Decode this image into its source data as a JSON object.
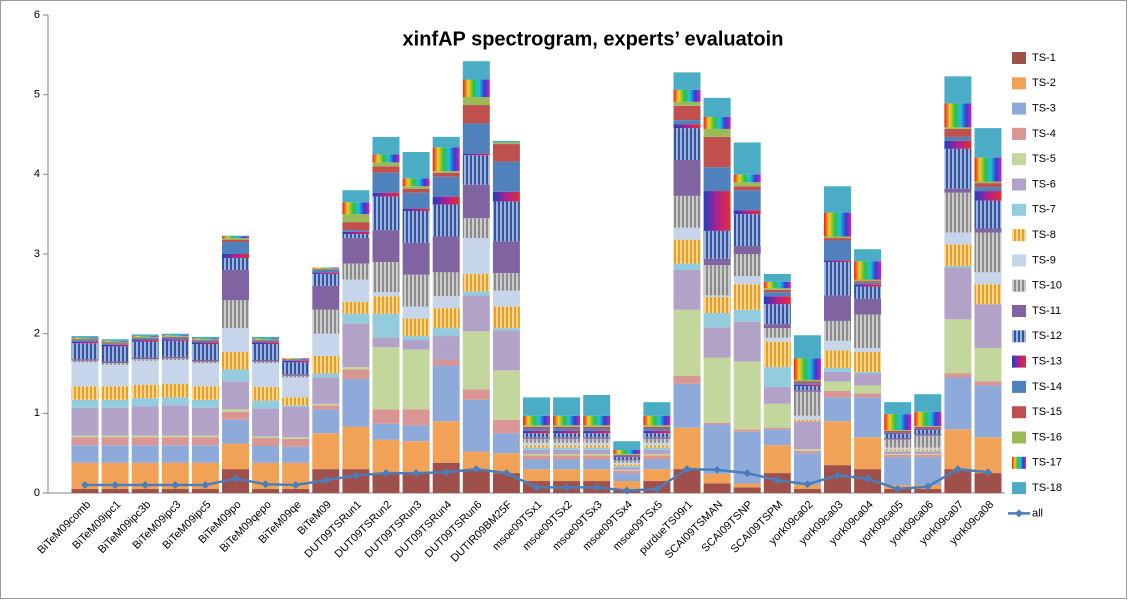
{
  "chart_data": {
    "type": "stacked-bar",
    "title": "xinfAP  spectrogram, experts’ evaluatoin",
    "categories": [
      "BiTeM09comb",
      "BiTeM09ipc1",
      "BiTeM09ipc3b",
      "BiTeM09ipc3",
      "BiTeM09ipc5",
      "BiTeM09po",
      "BiTeM09qepo",
      "BiTeM09qe",
      "BiTeM09",
      "DUT09TSRun1",
      "DUT09TSRun2",
      "DUT09TSRun3",
      "DUT09TSRun4",
      "DUT09TSRun6",
      "DUTIR09BM25F",
      "msoe09TSx1",
      "msoe09TSx2",
      "msoe09TSx3",
      "msoe09TSx4",
      "msoe09TSx5",
      "purdueTS09r1",
      "SCAI09TSMAN",
      "SCAI09TSNP",
      "SCAI09TSPM",
      "york09ca02",
      "york09ca03",
      "york09ca04",
      "york09ca05",
      "york09ca06",
      "york09ca07",
      "york09ca08"
    ],
    "ylim": [
      0,
      6
    ],
    "yticks": [
      0,
      1,
      2,
      3,
      4,
      5,
      6
    ],
    "grid": false,
    "legend": "right",
    "series": [
      {
        "name": "TS-1",
        "color": "#a0504a",
        "values": [
          0.05,
          0.05,
          0.05,
          0.05,
          0.05,
          0.3,
          0.05,
          0.05,
          0.3,
          0.3,
          0.25,
          0.25,
          0.38,
          0.3,
          0.25,
          0.15,
          0.15,
          0.15,
          0.05,
          0.15,
          0.3,
          0.12,
          0.07,
          0.25,
          0.05,
          0.35,
          0.3,
          0.05,
          0.05,
          0.3,
          0.25
        ]
      },
      {
        "name": "TS-2",
        "color": "#f2a256",
        "values": [
          0.33,
          0.33,
          0.33,
          0.33,
          0.33,
          0.32,
          0.33,
          0.33,
          0.45,
          0.53,
          0.42,
          0.4,
          0.52,
          0.22,
          0.25,
          0.15,
          0.15,
          0.15,
          0.1,
          0.15,
          0.52,
          0.12,
          0.05,
          0.35,
          0.05,
          0.55,
          0.4,
          0.05,
          0.05,
          0.5,
          0.45
        ]
      },
      {
        "name": "TS-3",
        "color": "#8eaadb",
        "values": [
          0.22,
          0.22,
          0.22,
          0.22,
          0.22,
          0.3,
          0.21,
          0.2,
          0.3,
          0.6,
          0.2,
          0.2,
          0.7,
          0.65,
          0.25,
          0.12,
          0.12,
          0.12,
          0.1,
          0.12,
          0.55,
          0.62,
          0.65,
          0.2,
          0.4,
          0.3,
          0.5,
          0.35,
          0.35,
          0.65,
          0.65
        ]
      },
      {
        "name": "TS-4",
        "color": "#d99694",
        "values": [
          0.1,
          0.1,
          0.1,
          0.1,
          0.1,
          0.1,
          0.1,
          0.1,
          0.05,
          0.12,
          0.18,
          0.2,
          0.07,
          0.13,
          0.17,
          0.05,
          0.05,
          0.05,
          0.03,
          0.05,
          0.1,
          0.02,
          0.03,
          0.02,
          0.03,
          0.08,
          0.05,
          0.03,
          0.03,
          0.05,
          0.05
        ]
      },
      {
        "name": "TS-5",
        "color": "#c3d69b",
        "values": [
          0.02,
          0.02,
          0.02,
          0.02,
          0.02,
          0.03,
          0.02,
          0.02,
          0.02,
          0.03,
          0.78,
          0.75,
          0,
          0.73,
          0.62,
          0.02,
          0.02,
          0.02,
          0.01,
          0.02,
          0.83,
          0.82,
          0.85,
          0.3,
          0.02,
          0.12,
          0.1,
          0.01,
          0.01,
          0.68,
          0.42
        ]
      },
      {
        "name": "TS-6",
        "color": "#b3a2c7",
        "values": [
          0.35,
          0.35,
          0.37,
          0.38,
          0.35,
          0.35,
          0.35,
          0.38,
          0.33,
          0.55,
          0.12,
          0.12,
          0.3,
          0.45,
          0.5,
          0.05,
          0.05,
          0.05,
          0.03,
          0.05,
          0.5,
          0.38,
          0.5,
          0.21,
          0.35,
          0.12,
          0.15,
          0.03,
          0.03,
          0.65,
          0.55
        ]
      },
      {
        "name": "TS-7",
        "color": "#93cddd",
        "values": [
          0.1,
          0.1,
          0.1,
          0.1,
          0.1,
          0.15,
          0.1,
          0.02,
          0.05,
          0.12,
          0.3,
          0.05,
          0.1,
          0.05,
          0.03,
          0.03,
          0.03,
          0.03,
          0.02,
          0.03,
          0.08,
          0.18,
          0.15,
          0.25,
          0,
          0.05,
          0.02,
          0.01,
          0.01,
          0.02,
          0
        ]
      },
      {
        "name": "TS-8",
        "color": "#e8a020",
        "pattern": "stripes",
        "values": [
          0.17,
          0.17,
          0.17,
          0.17,
          0.17,
          0.22,
          0.17,
          0.1,
          0.22,
          0.15,
          0.22,
          0.22,
          0.25,
          0.22,
          0.27,
          0.03,
          0.03,
          0.03,
          0.02,
          0.03,
          0.3,
          0.2,
          0.32,
          0.32,
          0.02,
          0.22,
          0.25,
          0.02,
          0.02,
          0.27,
          0.25
        ]
      },
      {
        "name": "TS-9",
        "color": "#c6d5ea",
        "values": [
          0.3,
          0.27,
          0.3,
          0.3,
          0.29,
          0.3,
          0.3,
          0.25,
          0.28,
          0.28,
          0.05,
          0.15,
          0.15,
          0.45,
          0.2,
          0.03,
          0.03,
          0.03,
          0.02,
          0.03,
          0.15,
          0.02,
          0.1,
          0.05,
          0.05,
          0.12,
          0.05,
          0.02,
          0.02,
          0.15,
          0.15
        ]
      },
      {
        "name": "TS-10",
        "color": "#8c8c8c",
        "pattern": "stripes",
        "values": [
          0.02,
          0.02,
          0.02,
          0.02,
          0.02,
          0.35,
          0.02,
          0.02,
          0.3,
          0.2,
          0.38,
          0.4,
          0.3,
          0.25,
          0.22,
          0.05,
          0.05,
          0.05,
          0.03,
          0.05,
          0.4,
          0.38,
          0.28,
          0.12,
          0.3,
          0.25,
          0.42,
          0.1,
          0.15,
          0.5,
          0.5
        ]
      },
      {
        "name": "TS-11",
        "color": "#8064a2",
        "values": [
          0.02,
          0.02,
          0.02,
          0.02,
          0.02,
          0.38,
          0.02,
          0.02,
          0.3,
          0.32,
          0.4,
          0.4,
          0.45,
          0.42,
          0.4,
          0.02,
          0.02,
          0.02,
          0.01,
          0.02,
          0.45,
          0.08,
          0.1,
          0.05,
          0.02,
          0.32,
          0.2,
          0.02,
          0.02,
          0.05,
          0.05
        ]
      },
      {
        "name": "TS-12",
        "color": "#2f55a4",
        "pattern": "stripes",
        "values": [
          0.2,
          0.19,
          0.2,
          0.2,
          0.2,
          0.15,
          0.2,
          0.15,
          0.15,
          0.05,
          0.42,
          0.4,
          0.4,
          0.37,
          0.5,
          0.05,
          0.05,
          0.05,
          0.03,
          0.05,
          0.4,
          0.35,
          0.4,
          0.25,
          0.05,
          0.42,
          0.15,
          0.05,
          0.05,
          0.5,
          0.35
        ]
      },
      {
        "name": "TS-13",
        "color": "#a0208f",
        "pattern": "gradient",
        "values": [
          0.02,
          0.02,
          0.02,
          0.02,
          0.02,
          0.05,
          0.02,
          0.02,
          0.02,
          0.03,
          0.05,
          0.03,
          0.1,
          0.02,
          0.12,
          0.03,
          0.03,
          0.03,
          0.01,
          0.03,
          0.05,
          0.5,
          0.05,
          0.1,
          0.02,
          0.02,
          0.03,
          0.01,
          0.01,
          0.1,
          0.12
        ]
      },
      {
        "name": "TS-14",
        "color": "#4f81bd",
        "values": [
          0.02,
          0.02,
          0.02,
          0.02,
          0.02,
          0.15,
          0.02,
          0.01,
          0.03,
          0.02,
          0.25,
          0.2,
          0.25,
          0.38,
          0.38,
          0.03,
          0.03,
          0.03,
          0.01,
          0.03,
          0.05,
          0.3,
          0.25,
          0.05,
          0.02,
          0.25,
          0.02,
          0.01,
          0.01,
          0.05,
          0.05
        ]
      },
      {
        "name": "TS-15",
        "color": "#c0504d",
        "values": [
          0.01,
          0.01,
          0.01,
          0.01,
          0.01,
          0.03,
          0.01,
          0.01,
          0.01,
          0.1,
          0.08,
          0.05,
          0.05,
          0.23,
          0.22,
          0.02,
          0.02,
          0.02,
          0.01,
          0.02,
          0.18,
          0.38,
          0.05,
          0.03,
          0.02,
          0.03,
          0.02,
          0.02,
          0.02,
          0.1,
          0.05
        ]
      },
      {
        "name": "TS-16",
        "color": "#9bbb59",
        "values": [
          0.01,
          0.01,
          0.01,
          0.01,
          0.01,
          0.02,
          0.01,
          0,
          0.01,
          0.1,
          0.05,
          0.03,
          0.02,
          0.1,
          0.02,
          0.02,
          0.02,
          0.02,
          0.01,
          0.02,
          0.05,
          0.1,
          0.05,
          0.02,
          0.02,
          0.02,
          0.02,
          0.01,
          0.01,
          0.02,
          0.02
        ]
      },
      {
        "name": "TS-17",
        "color": "#f0c020",
        "pattern": "rainbow",
        "values": [
          0.01,
          0.01,
          0.01,
          0.01,
          0.01,
          0.02,
          0.01,
          0.01,
          0.01,
          0.15,
          0.1,
          0.1,
          0.3,
          0.22,
          0,
          0.12,
          0.12,
          0.12,
          0.05,
          0.12,
          0.15,
          0.15,
          0.1,
          0.08,
          0.27,
          0.3,
          0.23,
          0.2,
          0.18,
          0.3,
          0.3
        ]
      },
      {
        "name": "TS-18",
        "color": "#4bacc6",
        "values": [
          0.02,
          0.02,
          0.02,
          0.02,
          0.02,
          0.01,
          0.02,
          0,
          0,
          0.15,
          0.22,
          0.33,
          0.13,
          0.23,
          0.02,
          0.23,
          0.23,
          0.26,
          0.11,
          0.17,
          0.22,
          0.24,
          0.4,
          0.1,
          0.29,
          0.33,
          0.15,
          0.15,
          0.22,
          0.34,
          0.37
        ]
      },
      {
        "name": "all",
        "color": "#4a7ebb",
        "type": "line",
        "values": [
          0.1,
          0.1,
          0.1,
          0.1,
          0.1,
          0.18,
          0.11,
          0.1,
          0.16,
          0.22,
          0.25,
          0.25,
          0.26,
          0.3,
          0.25,
          0.07,
          0.07,
          0.07,
          0.03,
          0.05,
          0.3,
          0.29,
          0.25,
          0.16,
          0.11,
          0.22,
          0.18,
          0.05,
          0.08,
          0.3,
          0.26
        ]
      }
    ]
  }
}
